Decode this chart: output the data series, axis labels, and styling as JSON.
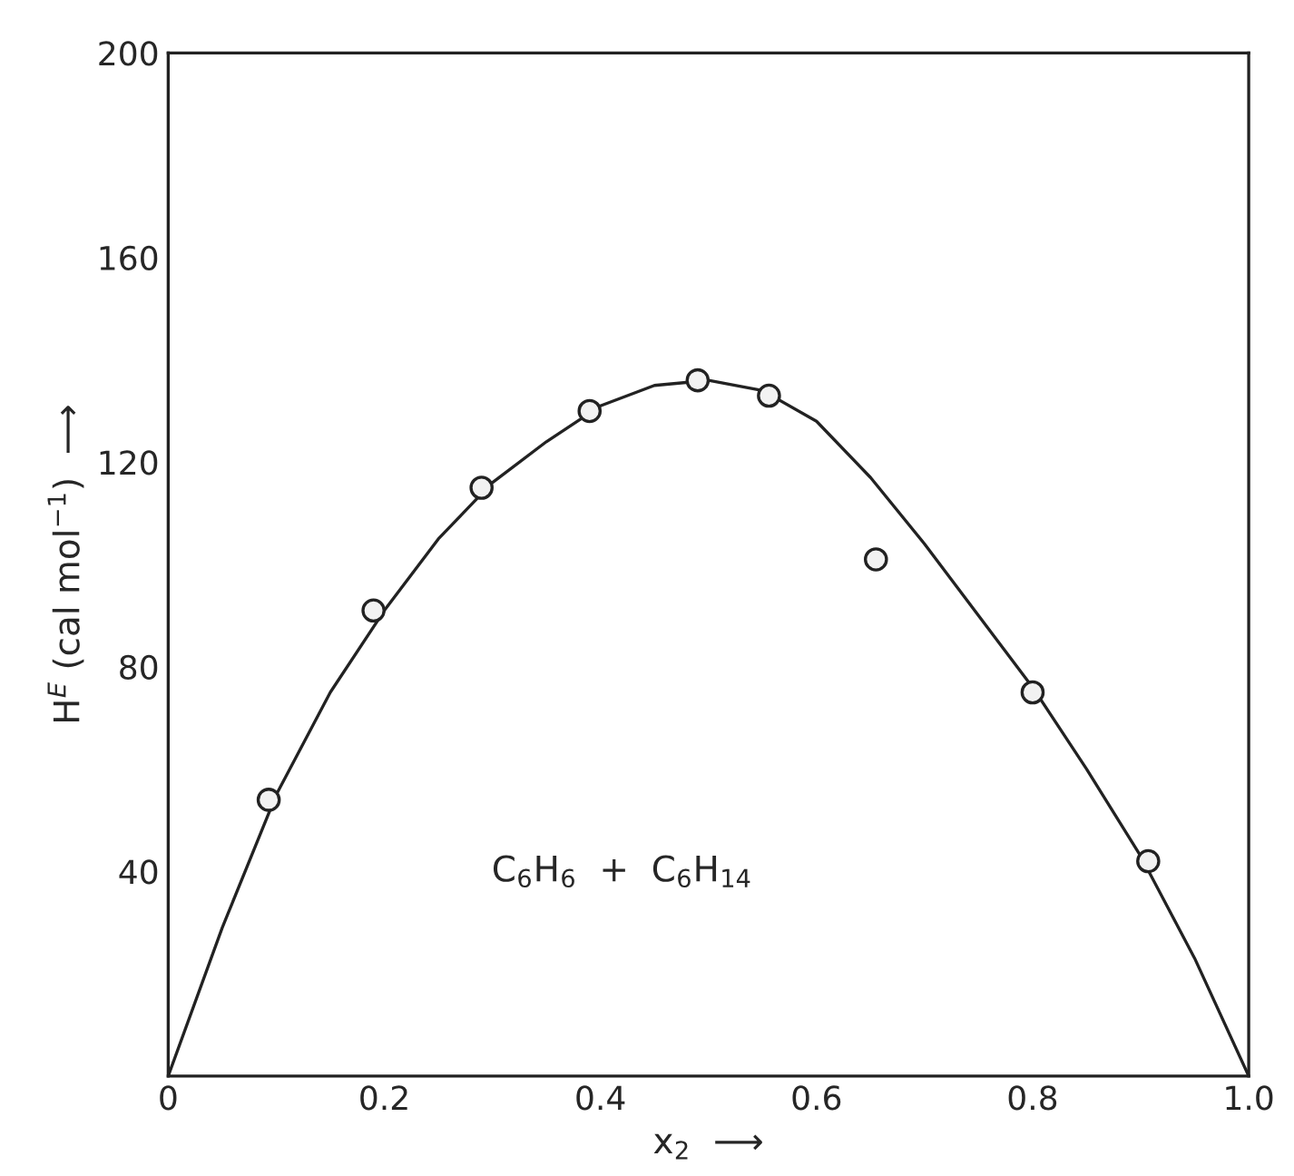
{
  "chart_data": {
    "type": "scatter",
    "xlabel": "x$_{2}$  ⟶",
    "ylabel": "H$^{E}$ (cal mol$^{−1}$)  ⟶",
    "annotations": [
      "C$_{6}$H$_{6}$  +  C$_{6}$H$_{14}$"
    ],
    "xlim": [
      0,
      1.0
    ],
    "ylim": [
      0,
      200
    ],
    "xticks": [
      0,
      0.2,
      0.4,
      0.6,
      0.8,
      {
        "value": 1.0,
        "label": "1.0"
      }
    ],
    "yticks": [
      40,
      80,
      120,
      160,
      200
    ],
    "grid": false,
    "legend": false,
    "series": [
      {
        "marker": "circle",
        "color": "#222222",
        "x": [
          0.093,
          0.19,
          0.29,
          0.39,
          0.49,
          0.556,
          0.655,
          0.8,
          0.907
        ],
        "values": [
          54,
          91,
          115,
          130,
          136,
          133,
          101,
          75,
          42
        ]
      },
      {
        "type": "line",
        "marker": "none",
        "line_style": "solid",
        "color": "#222222",
        "x": [
          0,
          0.05,
          0.1,
          0.15,
          0.2,
          0.25,
          0.3,
          0.35,
          0.4,
          0.45,
          0.5,
          0.55,
          0.6,
          0.65,
          0.7,
          0.75,
          0.8,
          0.85,
          0.9,
          0.95,
          1.0
        ],
        "values": [
          0,
          29,
          55,
          75,
          91,
          105,
          116,
          124,
          131,
          135,
          136,
          134,
          128,
          117,
          104,
          90,
          76,
          60,
          43,
          23,
          0
        ]
      }
    ]
  }
}
